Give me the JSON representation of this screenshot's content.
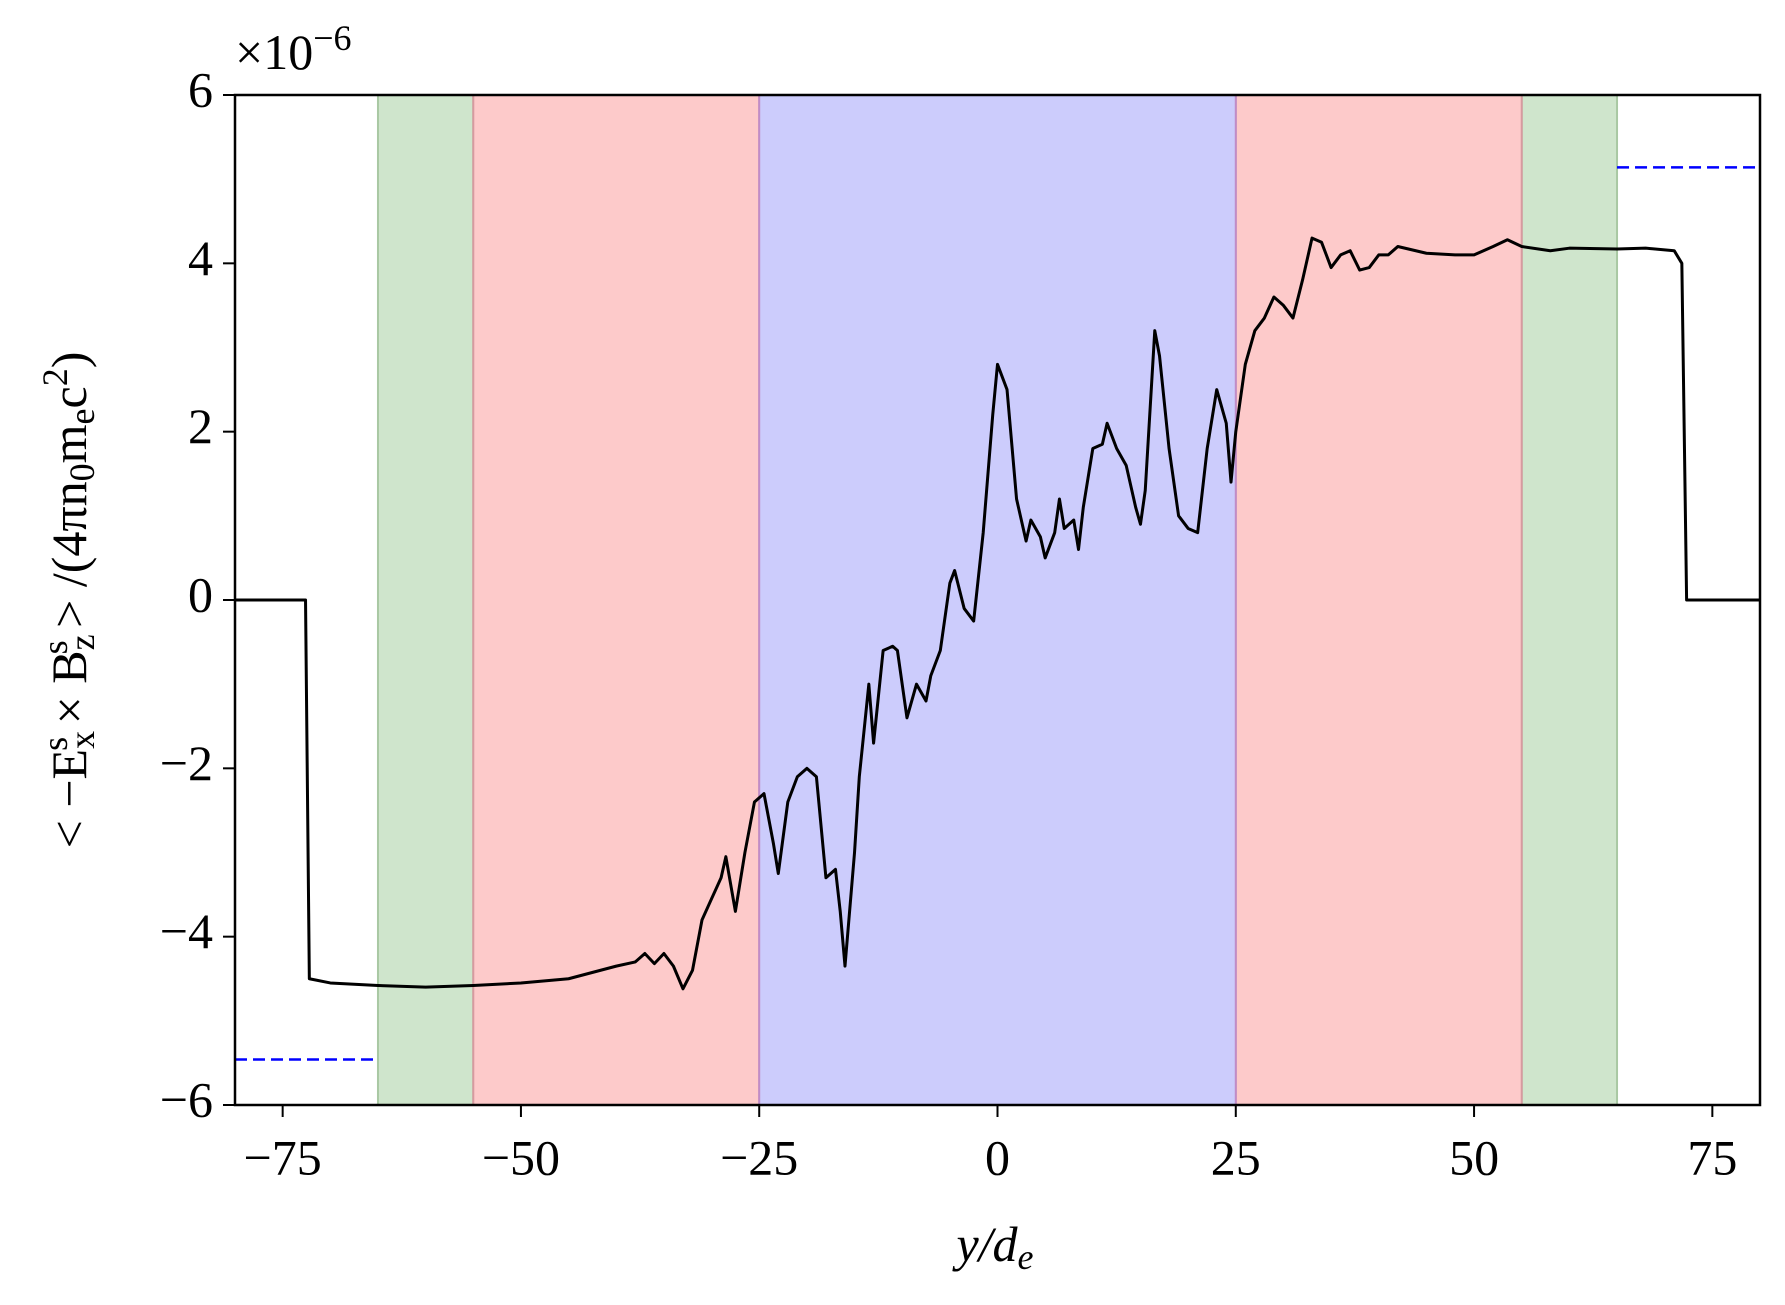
{
  "chart_data": {
    "type": "line",
    "xlabel": [
      {
        "text": "y/d"
      },
      {
        "text": "e",
        "pos": "sub"
      }
    ],
    "ylabel": [
      {
        "text": "< −E"
      },
      {
        "text": "x",
        "pos": "sub"
      },
      {
        "text": "s",
        "pos": "supover"
      },
      {
        "text": " × B"
      },
      {
        "text": "z",
        "pos": "sub"
      },
      {
        "text": "s",
        "pos": "supover"
      },
      {
        "text": " > /(4πn"
      },
      {
        "text": "0",
        "pos": "sub"
      },
      {
        "text": "m"
      },
      {
        "text": "e",
        "pos": "sub"
      },
      {
        "text": "c"
      },
      {
        "text": "2",
        "pos": "sup"
      },
      {
        "text": ")"
      }
    ],
    "y_offset_text": [
      {
        "text": "×10"
      },
      {
        "text": "−6",
        "pos": "sup"
      }
    ],
    "xlim": [
      -80,
      80
    ],
    "ylim": [
      -6,
      6
    ],
    "xticks": [
      {
        "value": -75,
        "label": "−75"
      },
      {
        "value": -50,
        "label": "−50"
      },
      {
        "value": -25,
        "label": "−25"
      },
      0,
      25,
      50,
      75
    ],
    "yticks": [
      {
        "value": -6,
        "label": "−6"
      },
      {
        "value": -4,
        "label": "−4"
      },
      {
        "value": -2,
        "label": "−2"
      },
      0,
      2,
      4,
      6
    ],
    "spans": [
      {
        "x": [
          -65,
          -55
        ],
        "color": "#cfe5cc"
      },
      {
        "x": [
          55,
          65
        ],
        "color": "#cfe5cc"
      },
      {
        "x": [
          -55,
          -25
        ],
        "color": "#fdcaca"
      },
      {
        "x": [
          25,
          55
        ],
        "color": "#fdcaca"
      },
      {
        "x": [
          -25,
          25
        ],
        "color": "#ccccfc"
      }
    ],
    "span_edge_colors": {
      "#cfe5cc": "#a9c8a3",
      "#fdcaca": "#d79aa0",
      "#ccccfc": "#c08cc8"
    },
    "series": [
      {
        "color": "#000000",
        "style": "solid",
        "x": [
          -80,
          -72.6,
          -72.2,
          -70,
          -65,
          -60,
          -55,
          -50,
          -45,
          -40,
          -38,
          -37,
          -36,
          -35,
          -34,
          -33,
          -32,
          -31,
          -30,
          -29,
          -28.5,
          -27.5,
          -26.5,
          -25.5,
          -24.5,
          -23.5,
          -23,
          -22,
          -21,
          -20,
          -19,
          -18,
          -17,
          -16.5,
          -16,
          -15,
          -14.5,
          -13.5,
          -13,
          -12,
          -11,
          -10.5,
          -9.5,
          -8.5,
          -7.5,
          -7,
          -6,
          -5,
          -4.5,
          -3.5,
          -2.5,
          -1.5,
          -0.5,
          0,
          1,
          2,
          3,
          3.5,
          4.5,
          5,
          6,
          6.5,
          7,
          8,
          8.5,
          9,
          10,
          11,
          11.5,
          12.5,
          13.5,
          14.5,
          15,
          15.5,
          16.5,
          17,
          18,
          19,
          20,
          21,
          22,
          23,
          24,
          24.5,
          25,
          26,
          27,
          28,
          29,
          30,
          31,
          32,
          33,
          34,
          35,
          36,
          37,
          38,
          39,
          40,
          41,
          42,
          45,
          48,
          50,
          52,
          53.5,
          55,
          58,
          60,
          65,
          68,
          71,
          71.8,
          72.3,
          80
        ],
        "values": [
          0,
          0,
          -4.5,
          -4.55,
          -4.58,
          -4.6,
          -4.58,
          -4.55,
          -4.5,
          -4.35,
          -4.3,
          -4.2,
          -4.32,
          -4.2,
          -4.35,
          -4.62,
          -4.4,
          -3.8,
          -3.55,
          -3.3,
          -3.05,
          -3.7,
          -3.0,
          -2.4,
          -2.3,
          -2.9,
          -3.25,
          -2.4,
          -2.1,
          -2.0,
          -2.1,
          -3.3,
          -3.2,
          -3.7,
          -4.35,
          -3.0,
          -2.1,
          -1.0,
          -1.7,
          -0.6,
          -0.55,
          -0.6,
          -1.4,
          -1.0,
          -1.2,
          -0.9,
          -0.6,
          0.2,
          0.35,
          -0.1,
          -0.25,
          0.8,
          2.2,
          2.8,
          2.5,
          1.2,
          0.7,
          0.95,
          0.75,
          0.5,
          0.8,
          1.2,
          0.85,
          0.95,
          0.6,
          1.1,
          1.8,
          1.85,
          2.1,
          1.8,
          1.6,
          1.1,
          0.9,
          1.3,
          3.2,
          2.9,
          1.8,
          1.0,
          0.85,
          0.8,
          1.8,
          2.5,
          2.1,
          1.4,
          2.0,
          2.8,
          3.2,
          3.35,
          3.6,
          3.5,
          3.35,
          3.8,
          4.3,
          4.25,
          3.95,
          4.1,
          4.15,
          3.92,
          3.95,
          4.1,
          4.1,
          4.2,
          4.12,
          4.1,
          4.1,
          4.2,
          4.28,
          4.2,
          4.15,
          4.18,
          4.17,
          4.18,
          4.15,
          4.0,
          0,
          0
        ]
      },
      {
        "color": "#0000ff",
        "style": "dashed",
        "x": [
          -80,
          -65
        ],
        "values": [
          -5.46,
          -5.46
        ]
      },
      {
        "color": "#0000ff",
        "style": "dashed",
        "x": [
          65,
          80
        ],
        "values": [
          5.14,
          5.14
        ]
      }
    ]
  }
}
